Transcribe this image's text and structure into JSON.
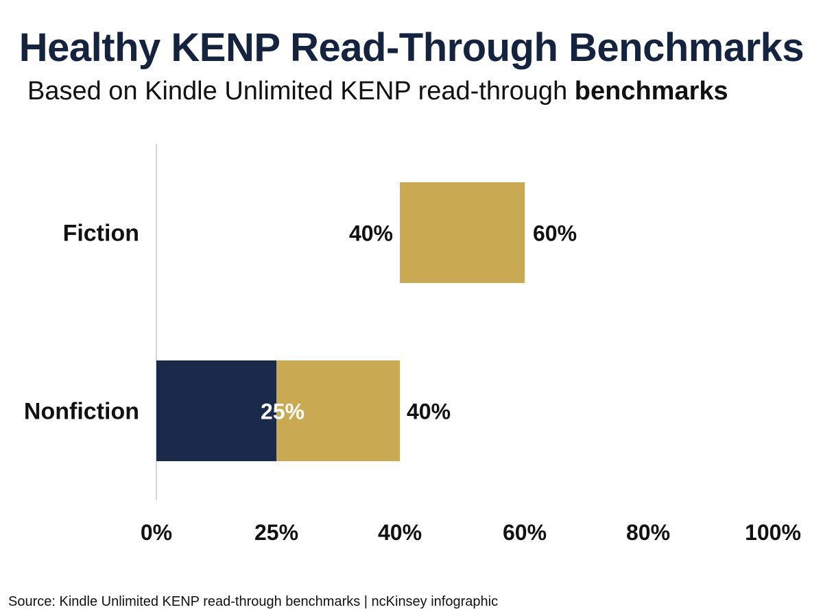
{
  "title": "Healthy KENP Read-Through Benchmarks",
  "subtitle_regular": "Based on Kindle Unlimited KENP read-through ",
  "subtitle_bold": "benchmarks",
  "source": "Source: Kindle Unlimited KENP read-through benchmarks | ncKinsey infographic",
  "colors": {
    "navy": "#1b2a4a",
    "gold": "#c9a952",
    "title": "#14233f"
  },
  "chart_data": {
    "type": "bar",
    "orientation": "horizontal",
    "categories": [
      "Fiction",
      "Nonfiction"
    ],
    "series": [
      {
        "values": [
          null,
          25
        ],
        "color": "#1b2a4a",
        "range": [
          [
            null,
            null
          ],
          [
            0,
            25
          ]
        ]
      },
      {
        "values": [
          20,
          15
        ],
        "color": "#c9a952",
        "range": [
          [
            40,
            60
          ],
          [
            25,
            40
          ]
        ]
      }
    ],
    "labels": {
      "Fiction": {
        "start": "40%",
        "end": "60%"
      },
      "Nonfiction": {
        "inner": "25%",
        "end": "40%"
      }
    },
    "x_ticks": [
      "0%",
      "25%",
      "40%",
      "60%",
      "80%",
      "100%"
    ],
    "xlim": [
      0,
      100
    ],
    "grid": false,
    "legend": "none"
  }
}
